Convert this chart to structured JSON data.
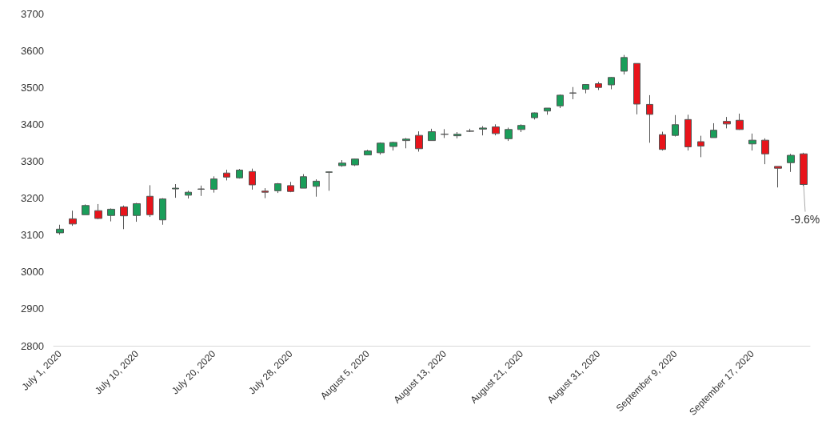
{
  "chart_data": {
    "type": "candlestick",
    "categories": [
      "July 1, 2020",
      null,
      null,
      null,
      null,
      null,
      "July 10, 2020",
      null,
      null,
      null,
      null,
      null,
      "July 20, 2020",
      null,
      null,
      null,
      null,
      null,
      "July 28, 2020",
      null,
      null,
      null,
      null,
      null,
      "August 5, 2020",
      null,
      null,
      null,
      null,
      null,
      "August 13, 2020",
      null,
      null,
      null,
      null,
      null,
      "August 21, 2020",
      null,
      null,
      null,
      null,
      null,
      "August 31, 2020",
      null,
      null,
      null,
      null,
      null,
      "September 9, 2020",
      null,
      null,
      null,
      null,
      null,
      "September 17, 2020",
      null,
      null,
      null,
      null
    ],
    "ohlc": [
      [
        3106,
        3128,
        3101,
        3116
      ],
      [
        3144,
        3166,
        3125,
        3130
      ],
      [
        3155,
        3183,
        3155,
        3180
      ],
      [
        3166,
        3184,
        3143,
        3145
      ],
      [
        3153,
        3172,
        3137,
        3170
      ],
      [
        3176,
        3180,
        3116,
        3152
      ],
      [
        3153,
        3187,
        3136,
        3185
      ],
      [
        3205,
        3235,
        3149,
        3155
      ],
      [
        3141,
        3200,
        3128,
        3198
      ],
      [
        3225,
        3238,
        3201,
        3227
      ],
      [
        3208,
        3220,
        3199,
        3216
      ],
      [
        3224,
        3234,
        3206,
        3225
      ],
      [
        3224,
        3259,
        3215,
        3252
      ],
      [
        3268,
        3277,
        3248,
        3257
      ],
      [
        3255,
        3279,
        3253,
        3276
      ],
      [
        3272,
        3280,
        3223,
        3236
      ],
      [
        3219,
        3227,
        3200,
        3216
      ],
      [
        3220,
        3241,
        3214,
        3239
      ],
      [
        3234,
        3244,
        3216,
        3218
      ],
      [
        3227,
        3265,
        3227,
        3258
      ],
      [
        3232,
        3251,
        3204,
        3246
      ],
      [
        3270,
        3272,
        3220,
        3271
      ],
      [
        3288,
        3303,
        3285,
        3295
      ],
      [
        3290,
        3307,
        3287,
        3306
      ],
      [
        3317,
        3331,
        3317,
        3328
      ],
      [
        3323,
        3351,
        3318,
        3349
      ],
      [
        3340,
        3353,
        3329,
        3351
      ],
      [
        3356,
        3363,
        3335,
        3360
      ],
      [
        3370,
        3381,
        3326,
        3334
      ],
      [
        3356,
        3388,
        3356,
        3380
      ],
      [
        3372.9,
        3387,
        3363,
        3373.4
      ],
      [
        3369,
        3379,
        3362,
        3373
      ],
      [
        3381,
        3388,
        3379,
        3382
      ],
      [
        3387,
        3395,
        3370,
        3390
      ],
      [
        3393,
        3400,
        3370,
        3375
      ],
      [
        3361,
        3391,
        3355,
        3386
      ],
      [
        3386,
        3400,
        3379,
        3397
      ],
      [
        3418,
        3432,
        3413,
        3431
      ],
      [
        3436,
        3444,
        3426,
        3444
      ],
      [
        3450,
        3481,
        3444,
        3479
      ],
      [
        3485.1,
        3501,
        3468,
        3484.6
      ],
      [
        3495,
        3509,
        3484,
        3508
      ],
      [
        3510,
        3515,
        3493,
        3500
      ],
      [
        3507,
        3528,
        3495,
        3527
      ],
      [
        3544,
        3588,
        3535,
        3581
      ],
      [
        3565,
        3565,
        3427,
        3455
      ],
      [
        3454,
        3479,
        3350,
        3427
      ],
      [
        3372,
        3380,
        3329,
        3332
      ],
      [
        3370,
        3425,
        3367,
        3399
      ],
      [
        3413,
        3426,
        3329,
        3339
      ],
      [
        3353,
        3369,
        3311,
        3341
      ],
      [
        3364,
        3403,
        3364,
        3384
      ],
      [
        3408,
        3420,
        3389,
        3401
      ],
      [
        3411,
        3429,
        3385,
        3386
      ],
      [
        3347,
        3375,
        3329,
        3357
      ],
      [
        3357,
        3362,
        3292,
        3320
      ],
      [
        3286,
        3286,
        3229,
        3281
      ],
      [
        3296,
        3320,
        3271,
        3316
      ],
      [
        3320,
        3323,
        3233,
        3237
      ]
    ],
    "colors": [
      "#1a9e5a",
      "#e8141b",
      "#1a9e5a",
      "#e8141b",
      "#1a9e5a",
      "#e8141b",
      "#1a9e5a",
      "#e8141b",
      "#1a9e5a",
      "#1a9e5a",
      "#1a9e5a",
      "#1a9e5a",
      "#1a9e5a",
      "#e8141b",
      "#1a9e5a",
      "#e8141b",
      "#e8141b",
      "#1a9e5a",
      "#e8141b",
      "#1a9e5a",
      "#1a9e5a",
      "#1a9e5a",
      "#1a9e5a",
      "#1a9e5a",
      "#1a9e5a",
      "#1a9e5a",
      "#1a9e5a",
      "#1a9e5a",
      "#e8141b",
      "#1a9e5a",
      "#1a9e5a",
      "#1a9e5a",
      "#1a9e5a",
      "#1a9e5a",
      "#e8141b",
      "#1a9e5a",
      "#1a9e5a",
      "#1a9e5a",
      "#1a9e5a",
      "#1a9e5a",
      "#555555",
      "#1a9e5a",
      "#e8141b",
      "#1a9e5a",
      "#1a9e5a",
      "#e8141b",
      "#e8141b",
      "#e8141b",
      "#1a9e5a",
      "#e8141b",
      "#e8141b",
      "#1a9e5a",
      "#e8141b",
      "#e8141b",
      "#1a9e5a",
      "#e8141b",
      "#e8141b",
      "#1a9e5a",
      "#e8141b"
    ],
    "ylim": [
      2800,
      3700
    ],
    "yticks": [
      2800,
      2900,
      3000,
      3100,
      3200,
      3300,
      3400,
      3500,
      3600,
      3700
    ],
    "annotations": [
      {
        "text": "-9.6%",
        "y": 3237
      }
    ]
  }
}
